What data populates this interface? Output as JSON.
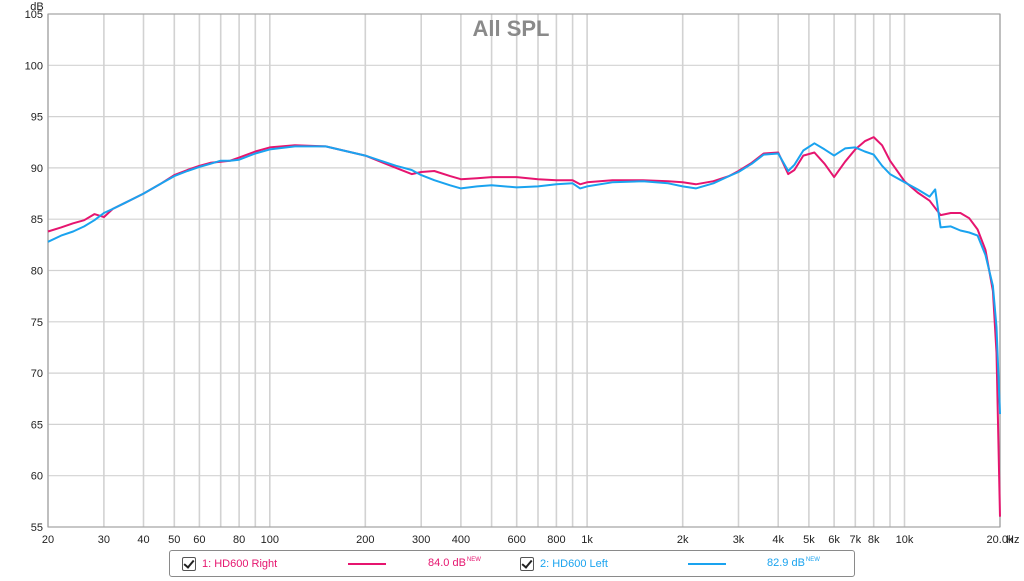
{
  "chart_data": {
    "type": "line",
    "title": "All SPL",
    "ylabel": "dB",
    "xlabel": "Hz",
    "xscale": "log",
    "xlim": [
      20,
      20000
    ],
    "ylim": [
      55,
      105
    ],
    "y_ticks": [
      55,
      60,
      65,
      70,
      75,
      80,
      85,
      90,
      95,
      100,
      105
    ],
    "x_ticks": [
      {
        "v": 20,
        "l": "20"
      },
      {
        "v": 30,
        "l": "30"
      },
      {
        "v": 40,
        "l": "40"
      },
      {
        "v": 50,
        "l": "50"
      },
      {
        "v": 60,
        "l": "60"
      },
      {
        "v": 80,
        "l": "80"
      },
      {
        "v": 100,
        "l": "100"
      },
      {
        "v": 200,
        "l": "200"
      },
      {
        "v": 300,
        "l": "300"
      },
      {
        "v": 400,
        "l": "400"
      },
      {
        "v": 600,
        "l": "600"
      },
      {
        "v": 800,
        "l": "800"
      },
      {
        "v": 1000,
        "l": "1k"
      },
      {
        "v": 2000,
        "l": "2k"
      },
      {
        "v": 3000,
        "l": "3k"
      },
      {
        "v": 4000,
        "l": "4k"
      },
      {
        "v": 5000,
        "l": "5k"
      },
      {
        "v": 6000,
        "l": "6k"
      },
      {
        "v": 7000,
        "l": "7k"
      },
      {
        "v": 8000,
        "l": "8k"
      },
      {
        "v": 10000,
        "l": "10k"
      },
      {
        "v": 20000,
        "l": "20.0k"
      }
    ],
    "grid": true,
    "series": [
      {
        "name": "1: HD600 Right",
        "level": "84.0 dB",
        "level_tag": "NEW",
        "color": "#e6156f",
        "points": [
          [
            20,
            83.8
          ],
          [
            22,
            84.2
          ],
          [
            24,
            84.6
          ],
          [
            26,
            84.9
          ],
          [
            28,
            85.5
          ],
          [
            30,
            85.2
          ],
          [
            32,
            86
          ],
          [
            35,
            86.6
          ],
          [
            40,
            87.5
          ],
          [
            45,
            88.4
          ],
          [
            50,
            89.3
          ],
          [
            55,
            89.8
          ],
          [
            60,
            90.2
          ],
          [
            65,
            90.5
          ],
          [
            70,
            90.6
          ],
          [
            75,
            90.7
          ],
          [
            80,
            91
          ],
          [
            90,
            91.6
          ],
          [
            100,
            92
          ],
          [
            120,
            92.2
          ],
          [
            150,
            92.1
          ],
          [
            200,
            91.2
          ],
          [
            250,
            90
          ],
          [
            280,
            89.4
          ],
          [
            300,
            89.6
          ],
          [
            330,
            89.7
          ],
          [
            370,
            89.2
          ],
          [
            400,
            88.9
          ],
          [
            450,
            89
          ],
          [
            500,
            89.1
          ],
          [
            600,
            89.1
          ],
          [
            700,
            88.9
          ],
          [
            800,
            88.8
          ],
          [
            900,
            88.8
          ],
          [
            950,
            88.4
          ],
          [
            1000,
            88.6
          ],
          [
            1200,
            88.8
          ],
          [
            1500,
            88.8
          ],
          [
            1800,
            88.7
          ],
          [
            2000,
            88.6
          ],
          [
            2200,
            88.4
          ],
          [
            2500,
            88.7
          ],
          [
            2800,
            89.2
          ],
          [
            3000,
            89.7
          ],
          [
            3300,
            90.5
          ],
          [
            3600,
            91.4
          ],
          [
            4000,
            91.5
          ],
          [
            4300,
            89.4
          ],
          [
            4500,
            89.8
          ],
          [
            4800,
            91.2
          ],
          [
            5200,
            91.5
          ],
          [
            5600,
            90.4
          ],
          [
            6000,
            89.1
          ],
          [
            6500,
            90.6
          ],
          [
            7000,
            91.8
          ],
          [
            7500,
            92.6
          ],
          [
            8000,
            93
          ],
          [
            8500,
            92.2
          ],
          [
            9000,
            90.7
          ],
          [
            10000,
            88.7
          ],
          [
            11000,
            87.6
          ],
          [
            12000,
            86.8
          ],
          [
            13000,
            85.4
          ],
          [
            14000,
            85.6
          ],
          [
            15000,
            85.6
          ],
          [
            16000,
            85.1
          ],
          [
            17000,
            84
          ],
          [
            18000,
            82
          ],
          [
            19000,
            78
          ],
          [
            19500,
            72
          ],
          [
            20000,
            56
          ]
        ]
      },
      {
        "name": "2: HD600 Left",
        "level": "82.9 dB",
        "level_tag": "NEW",
        "color": "#1aa3ef",
        "points": [
          [
            20,
            82.8
          ],
          [
            22,
            83.4
          ],
          [
            24,
            83.8
          ],
          [
            26,
            84.3
          ],
          [
            28,
            84.9
          ],
          [
            30,
            85.6
          ],
          [
            32,
            86
          ],
          [
            35,
            86.6
          ],
          [
            40,
            87.5
          ],
          [
            45,
            88.4
          ],
          [
            50,
            89.2
          ],
          [
            55,
            89.7
          ],
          [
            60,
            90.1
          ],
          [
            65,
            90.4
          ],
          [
            70,
            90.7
          ],
          [
            75,
            90.7
          ],
          [
            80,
            90.8
          ],
          [
            90,
            91.4
          ],
          [
            100,
            91.8
          ],
          [
            120,
            92.1
          ],
          [
            150,
            92.1
          ],
          [
            200,
            91.2
          ],
          [
            250,
            90.2
          ],
          [
            280,
            89.8
          ],
          [
            300,
            89.3
          ],
          [
            330,
            88.8
          ],
          [
            370,
            88.3
          ],
          [
            400,
            88
          ],
          [
            450,
            88.2
          ],
          [
            500,
            88.3
          ],
          [
            600,
            88.1
          ],
          [
            700,
            88.2
          ],
          [
            800,
            88.4
          ],
          [
            900,
            88.5
          ],
          [
            950,
            88
          ],
          [
            1000,
            88.2
          ],
          [
            1200,
            88.6
          ],
          [
            1500,
            88.7
          ],
          [
            1800,
            88.5
          ],
          [
            2000,
            88.2
          ],
          [
            2200,
            88
          ],
          [
            2500,
            88.5
          ],
          [
            2800,
            89.2
          ],
          [
            3000,
            89.6
          ],
          [
            3300,
            90.4
          ],
          [
            3600,
            91.3
          ],
          [
            4000,
            91.4
          ],
          [
            4300,
            89.7
          ],
          [
            4500,
            90.3
          ],
          [
            4800,
            91.7
          ],
          [
            5200,
            92.4
          ],
          [
            5600,
            91.8
          ],
          [
            6000,
            91.2
          ],
          [
            6500,
            91.9
          ],
          [
            7000,
            92
          ],
          [
            7500,
            91.6
          ],
          [
            8000,
            91.3
          ],
          [
            8500,
            90.2
          ],
          [
            9000,
            89.4
          ],
          [
            10000,
            88.6
          ],
          [
            11000,
            87.9
          ],
          [
            12000,
            87.2
          ],
          [
            12500,
            87.9
          ],
          [
            13000,
            84.2
          ],
          [
            14000,
            84.3
          ],
          [
            15000,
            83.9
          ],
          [
            16000,
            83.7
          ],
          [
            17000,
            83.4
          ],
          [
            18000,
            81.5
          ],
          [
            19000,
            78.5
          ],
          [
            19500,
            74.5
          ],
          [
            20000,
            66
          ]
        ]
      }
    ]
  }
}
